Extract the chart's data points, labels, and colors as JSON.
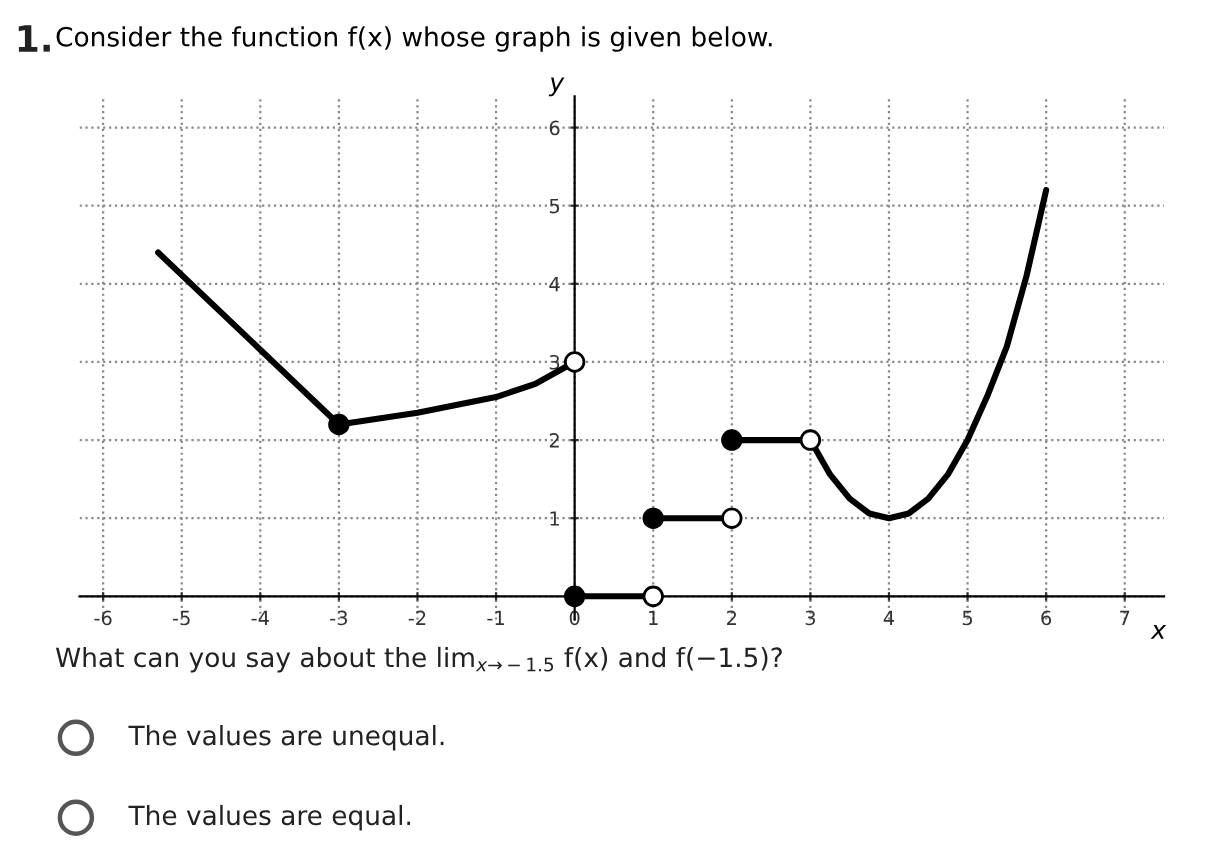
{
  "chart_data": {
    "type": "line",
    "title": "Consider the function f(x) whose graph is given below.",
    "xlabel": "x",
    "ylabel": "y",
    "xlim": [
      -6.3,
      7.5
    ],
    "ylim": [
      -0.3,
      6.4
    ],
    "xticks": [
      -6,
      -5,
      -4,
      -3,
      -2,
      -1,
      0,
      1,
      2,
      3,
      4,
      5,
      6,
      7
    ],
    "yticks": [
      {
        "value": 0,
        "label": null
      },
      1,
      2,
      3,
      4,
      5,
      6
    ],
    "grid": true,
    "series": [
      {
        "color": "#000000",
        "x": [
          -5.3,
          -3
        ],
        "values": [
          4.4,
          2.2
        ]
      },
      {
        "color": "#000000",
        "x": [
          -3,
          -2,
          -1,
          -0.5,
          0
        ],
        "values": [
          2.2,
          2.35,
          2.55,
          2.72,
          3
        ]
      },
      {
        "color": "#000000",
        "x": [
          0,
          1
        ],
        "values": [
          0,
          0
        ]
      },
      {
        "color": "#000000",
        "x": [
          1,
          2
        ],
        "values": [
          1,
          1
        ]
      },
      {
        "color": "#000000",
        "x": [
          2,
          3
        ],
        "values": [
          2,
          2
        ]
      },
      {
        "color": "#000000",
        "x": [
          3,
          3.25,
          3.5,
          3.75,
          4,
          4.25,
          4.5,
          4.75,
          5,
          5.25,
          5.5,
          5.75,
          6
        ],
        "values": [
          2,
          1.56,
          1.25,
          1.06,
          1,
          1.06,
          1.25,
          1.56,
          2,
          2.56,
          3.2,
          4.1,
          5.2
        ]
      },
      {
        "type": "scatter",
        "color": "#000000",
        "marker": "circle",
        "x": [
          -3,
          0,
          1,
          2
        ],
        "values": [
          2.2,
          0,
          1,
          2
        ]
      },
      {
        "type": "scatter",
        "color": "#ffffff",
        "marker": "circle",
        "x": [
          0,
          1,
          2,
          3
        ],
        "values": [
          3,
          0,
          1,
          2
        ]
      }
    ],
    "annotations": [
      "1.",
      "What can you say about the lim$_{x→−1.5}$ f(x) and f(−1.5)?",
      "The values are unequal.",
      "The values are equal."
    ]
  }
}
